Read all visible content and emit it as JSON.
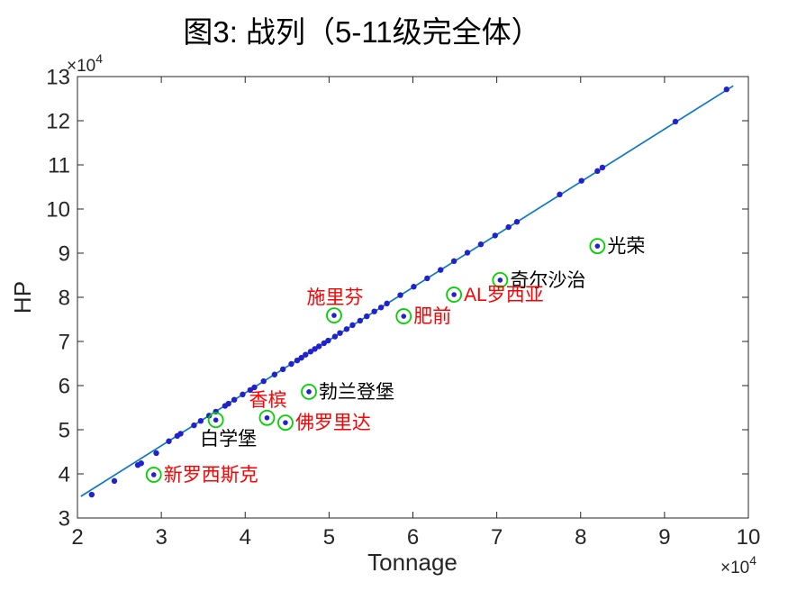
{
  "figure": {
    "background": "#ffffff"
  },
  "chart_data": {
    "type": "scatter",
    "title": "图3: 战列（5-11级完全体）",
    "xlabel": "Tonnage",
    "ylabel": "HP",
    "x_unit_exponent": {
      "base": "×10",
      "power": "4"
    },
    "y_unit_exponent": {
      "base": "×10",
      "power": "4"
    },
    "xlim": [
      2,
      10
    ],
    "ylim": [
      3,
      13
    ],
    "x_ticks": [
      2,
      3,
      4,
      5,
      6,
      7,
      8,
      9,
      10
    ],
    "y_ticks": [
      3,
      4,
      5,
      6,
      7,
      8,
      9,
      10,
      11,
      12,
      13
    ],
    "grid": false,
    "legend": "none",
    "units_note": "all values ×10^4",
    "colors": {
      "line": "#0a78c8",
      "dot": "#2222cc",
      "highlight_ring": "#00d200",
      "label_red": "#ff0000",
      "label_black": "#000000",
      "axis": "#262626"
    },
    "trend_line": {
      "x1": 2.04,
      "y1": 3.49,
      "x2": 9.82,
      "y2": 12.79
    },
    "scatter_points": [
      [
        2.17,
        3.53
      ],
      [
        2.44,
        3.84
      ],
      [
        2.72,
        4.2
      ],
      [
        2.76,
        4.24
      ],
      [
        2.94,
        4.47
      ],
      [
        3.09,
        4.74
      ],
      [
        3.19,
        4.86
      ],
      [
        3.23,
        4.91
      ],
      [
        3.39,
        5.1
      ],
      [
        3.47,
        5.2
      ],
      [
        3.57,
        5.32
      ],
      [
        3.65,
        5.41
      ],
      [
        3.76,
        5.54
      ],
      [
        3.8,
        5.59
      ],
      [
        3.87,
        5.68
      ],
      [
        3.97,
        5.8
      ],
      [
        4.06,
        5.9
      ],
      [
        4.11,
        5.96
      ],
      [
        4.22,
        6.1
      ],
      [
        4.35,
        6.25
      ],
      [
        4.45,
        6.37
      ],
      [
        4.55,
        6.49
      ],
      [
        4.62,
        6.57
      ],
      [
        4.67,
        6.63
      ],
      [
        4.72,
        6.7
      ],
      [
        4.78,
        6.77
      ],
      [
        4.83,
        6.83
      ],
      [
        4.88,
        6.89
      ],
      [
        4.94,
        6.96
      ],
      [
        4.99,
        7.02
      ],
      [
        5.07,
        7.11
      ],
      [
        5.13,
        7.19
      ],
      [
        5.21,
        7.28
      ],
      [
        5.28,
        7.37
      ],
      [
        5.37,
        7.47
      ],
      [
        5.45,
        7.57
      ],
      [
        5.54,
        7.68
      ],
      [
        5.62,
        7.77
      ],
      [
        5.69,
        7.86
      ],
      [
        5.85,
        8.05
      ],
      [
        6.01,
        8.24
      ],
      [
        6.17,
        8.43
      ],
      [
        6.33,
        8.62
      ],
      [
        6.49,
        8.82
      ],
      [
        6.65,
        9.01
      ],
      [
        6.81,
        9.2
      ],
      [
        6.98,
        9.4
      ],
      [
        7.14,
        9.59
      ],
      [
        7.24,
        9.71
      ],
      [
        7.75,
        10.33
      ],
      [
        8.01,
        10.64
      ],
      [
        8.2,
        10.86
      ],
      [
        8.26,
        10.94
      ],
      [
        9.13,
        11.98
      ],
      [
        9.74,
        12.71
      ]
    ],
    "highlighted_points": [
      {
        "label": "光荣",
        "x": 8.2,
        "y": 9.16,
        "label_color": "black",
        "label_pos": "right"
      },
      {
        "label": "奇尔沙治",
        "x": 7.04,
        "y": 8.39,
        "label_color": "black",
        "label_pos": "right"
      },
      {
        "label": "AL罗西亚",
        "x": 6.49,
        "y": 8.06,
        "label_color": "red",
        "label_pos": "right"
      },
      {
        "label": "施里芬",
        "x": 5.06,
        "y": 7.59,
        "label_color": "red",
        "label_pos": "above"
      },
      {
        "label": "肥前",
        "x": 5.89,
        "y": 7.57,
        "label_color": "red",
        "label_pos": "right"
      },
      {
        "label": "勃兰登堡",
        "x": 4.76,
        "y": 5.86,
        "label_color": "black",
        "label_pos": "right"
      },
      {
        "label": "香槟",
        "x": 4.26,
        "y": 5.27,
        "label_color": "red",
        "label_pos": "above"
      },
      {
        "label": "白学堡",
        "x": 3.65,
        "y": 5.22,
        "label_color": "black",
        "label_pos": "below"
      },
      {
        "label": "佛罗里达",
        "x": 4.48,
        "y": 5.16,
        "label_color": "red",
        "label_pos": "right"
      },
      {
        "label": "新罗西斯克",
        "x": 2.91,
        "y": 3.98,
        "label_color": "red",
        "label_pos": "right"
      }
    ]
  }
}
